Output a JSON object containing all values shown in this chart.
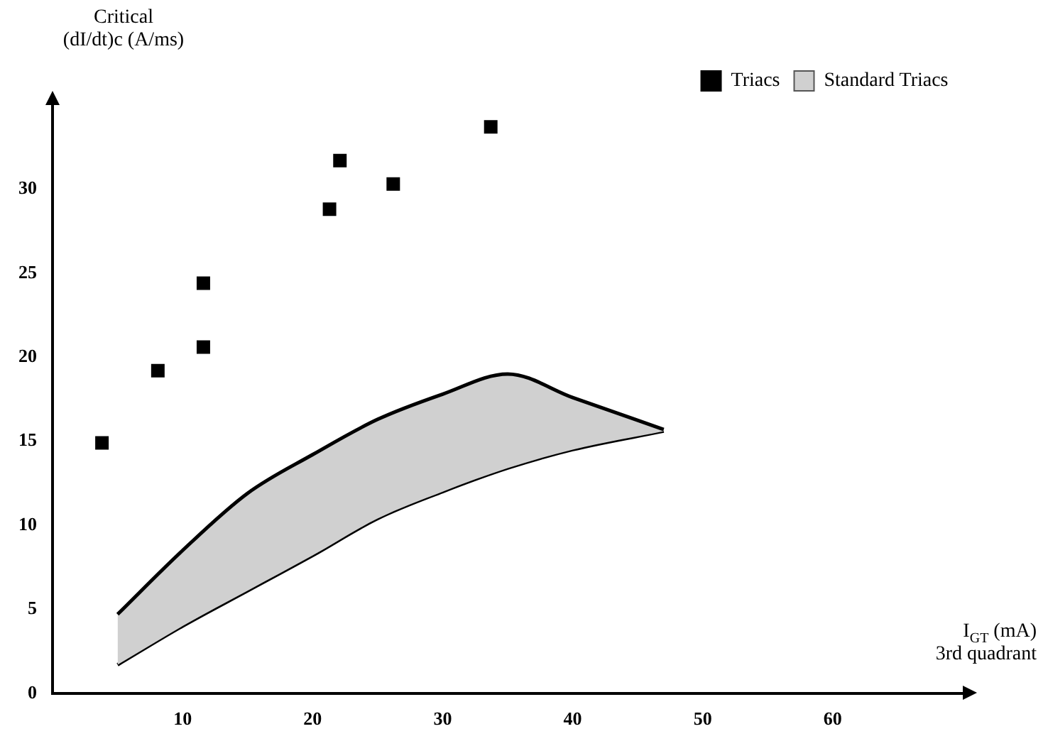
{
  "chart_data": {
    "type": "scatter",
    "ylabel": "Critical\n(dI/dt)c (A/ms)",
    "xlabel": "I$_{GT}$ (mA)\n3rd quadrant",
    "xlim": [
      0,
      70
    ],
    "ylim": [
      0,
      35
    ],
    "xticks": [
      10,
      20,
      30,
      40,
      50,
      60
    ],
    "yticks": [
      0,
      5,
      10,
      15,
      20,
      25,
      30
    ],
    "grid": false,
    "legend": "top right",
    "series": [
      {
        "name": "Triacs",
        "type": "scatter",
        "marker": "square",
        "color": "#000000",
        "x": [
          3.8,
          8.1,
          11.6,
          11.6,
          21.3,
          22.1,
          26.2,
          33.7
        ],
        "values": [
          14.9,
          19.2,
          24.4,
          20.6,
          28.8,
          31.7,
          30.3,
          33.7
        ]
      },
      {
        "name": "Standard Triacs",
        "type": "area",
        "marker": "none",
        "color": "#d0d0d0",
        "x": [
          5,
          10,
          15,
          20,
          25,
          30,
          35,
          40,
          47
        ],
        "values": [
          4.7,
          8.5,
          11.9,
          14.2,
          16.3,
          17.8,
          19,
          17.6,
          15.7
        ]
      },
      {
        "type": "line",
        "marker": "none",
        "color": "#000000",
        "x": [
          5,
          10,
          15,
          20,
          25,
          30,
          35,
          40,
          47
        ],
        "values": [
          1.7,
          4.0,
          6.1,
          8.2,
          10.4,
          12.0,
          13.4,
          14.5,
          15.6
        ]
      }
    ]
  }
}
